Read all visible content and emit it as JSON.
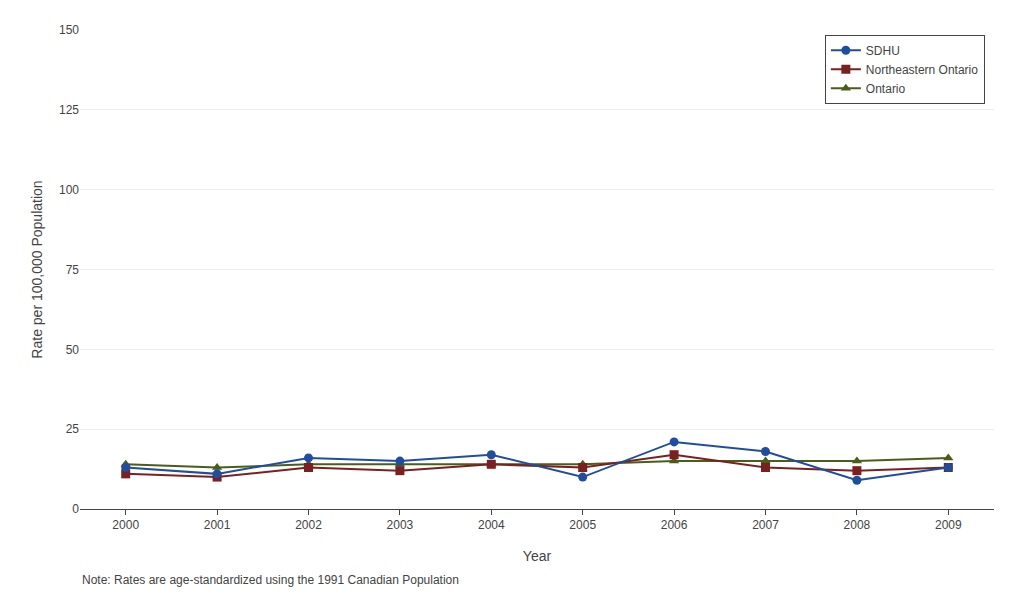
{
  "chart_data": {
    "type": "line",
    "x": [
      2000,
      2001,
      2002,
      2003,
      2004,
      2005,
      2006,
      2007,
      2008,
      2009
    ],
    "series": [
      {
        "name": "SDHU",
        "color": "#1f4e9e",
        "marker": "circle",
        "values": [
          13,
          11,
          16,
          15,
          17,
          10,
          21,
          18,
          9,
          13
        ]
      },
      {
        "name": "Northeastern Ontario",
        "color": "#7b2020",
        "marker": "square",
        "values": [
          11,
          10,
          13,
          12,
          14,
          13,
          17,
          13,
          12,
          13
        ]
      },
      {
        "name": "Ontario",
        "color": "#4a5e1a",
        "marker": "triangle-up",
        "values": [
          14,
          13,
          14,
          14,
          14,
          14,
          15,
          15,
          15,
          16
        ]
      }
    ],
    "xlabel": "Year",
    "ylabel": "Rate per 100,000 Population",
    "xlim": [
      1999.5,
      2009.5
    ],
    "xticks": [
      2000,
      2001,
      2002,
      2003,
      2004,
      2005,
      2006,
      2007,
      2008,
      2009
    ],
    "ylim": [
      0,
      150
    ],
    "yticks": [
      0,
      25,
      50,
      75,
      100,
      125,
      150
    ],
    "grid": "y",
    "legend": "upper right",
    "annotations": [
      "Note: Rates are age-standardized using the 1991 Canadian Population"
    ]
  }
}
